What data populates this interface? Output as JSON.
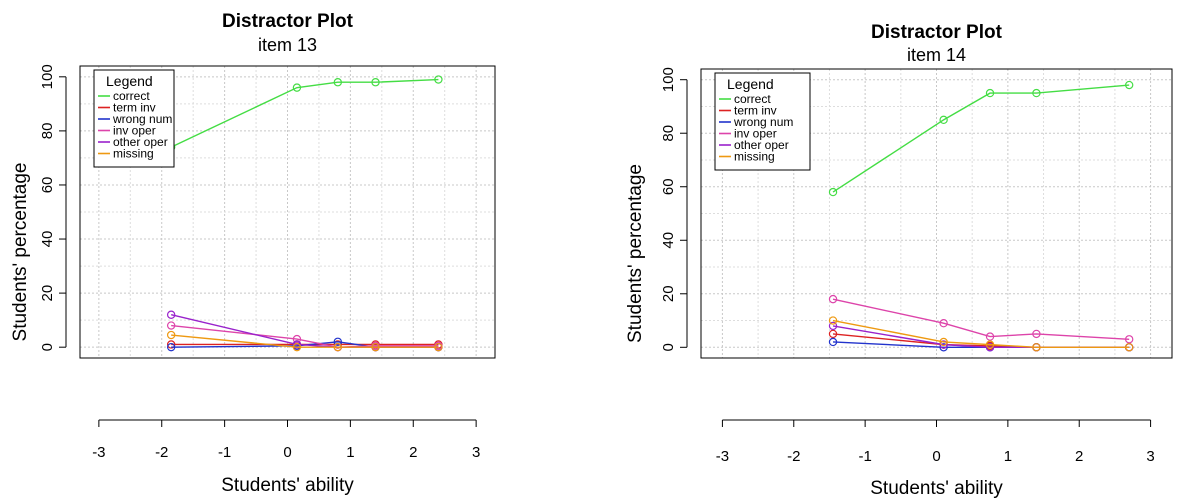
{
  "chart_data": [
    {
      "type": "line",
      "title": "Distractor Plot",
      "subtitle": "item 13",
      "xlabel": "Students' ability",
      "ylabel": "Students' percentage",
      "xlim": [
        -3.3,
        3.3
      ],
      "ylim": [
        -4,
        104
      ],
      "xticks": [
        -3,
        -2,
        -1,
        0,
        1,
        2,
        3
      ],
      "yticks": [
        0,
        20,
        40,
        60,
        80,
        100
      ],
      "grid": true,
      "legend": {
        "title": "Legend",
        "position": "top-left"
      },
      "series": [
        {
          "name": "correct",
          "color": "#44dd44",
          "x": [
            -1.85,
            0.15,
            0.8,
            1.4,
            2.4
          ],
          "y": [
            74,
            96,
            98,
            98,
            99
          ]
        },
        {
          "name": "term inv",
          "color": "#dd2222",
          "x": [
            -1.85,
            0.15,
            0.8,
            1.4,
            2.4
          ],
          "y": [
            1,
            1,
            1,
            1,
            1
          ]
        },
        {
          "name": "wrong num",
          "color": "#2233cc",
          "x": [
            -1.85,
            0.15,
            0.8,
            1.4,
            2.4
          ],
          "y": [
            0,
            0.5,
            2,
            0,
            0
          ]
        },
        {
          "name": "inv oper",
          "color": "#dd44aa",
          "x": [
            -1.85,
            0.15,
            0.8,
            1.4,
            2.4
          ],
          "y": [
            8,
            3,
            0,
            0.5,
            0.5
          ]
        },
        {
          "name": "other oper",
          "color": "#9922cc",
          "x": [
            -1.85,
            0.15,
            0.8,
            1.4,
            2.4
          ],
          "y": [
            12,
            1,
            0,
            0,
            0
          ]
        },
        {
          "name": "missing",
          "color": "#ee9911",
          "x": [
            -1.85,
            0.15,
            0.8,
            1.4,
            2.4
          ],
          "y": [
            4.5,
            0,
            0,
            0,
            0
          ]
        }
      ]
    },
    {
      "type": "line",
      "title": "Distractor Plot",
      "subtitle": "item 14",
      "xlabel": "Students' ability",
      "ylabel": "Students' percentage",
      "xlim": [
        -3.3,
        3.3
      ],
      "ylim": [
        -4,
        104
      ],
      "xticks": [
        -3,
        -2,
        -1,
        0,
        1,
        2,
        3
      ],
      "yticks": [
        0,
        20,
        40,
        60,
        80,
        100
      ],
      "grid": true,
      "legend": {
        "title": "Legend",
        "position": "top-left"
      },
      "series": [
        {
          "name": "correct",
          "color": "#44dd44",
          "x": [
            -1.45,
            0.1,
            0.75,
            1.4,
            2.7
          ],
          "y": [
            58,
            85,
            95,
            95,
            98
          ]
        },
        {
          "name": "term inv",
          "color": "#dd2222",
          "x": [
            -1.45,
            0.1,
            0.75,
            1.4,
            2.7
          ],
          "y": [
            5,
            1,
            0.5,
            0,
            0
          ]
        },
        {
          "name": "wrong num",
          "color": "#2233cc",
          "x": [
            -1.45,
            0.1,
            0.75,
            1.4,
            2.7
          ],
          "y": [
            2,
            0,
            0,
            0,
            0
          ]
        },
        {
          "name": "inv oper",
          "color": "#dd44aa",
          "x": [
            -1.45,
            0.1,
            0.75,
            1.4,
            2.7
          ],
          "y": [
            18,
            9,
            4,
            5,
            3
          ]
        },
        {
          "name": "other oper",
          "color": "#9922cc",
          "x": [
            -1.45,
            0.1,
            0.75,
            1.4,
            2.7
          ],
          "y": [
            8,
            1,
            0,
            0,
            0
          ]
        },
        {
          "name": "missing",
          "color": "#ee9911",
          "x": [
            -1.45,
            0.1,
            0.75,
            1.4,
            2.7
          ],
          "y": [
            10,
            2,
            1,
            0,
            0
          ]
        }
      ]
    }
  ]
}
